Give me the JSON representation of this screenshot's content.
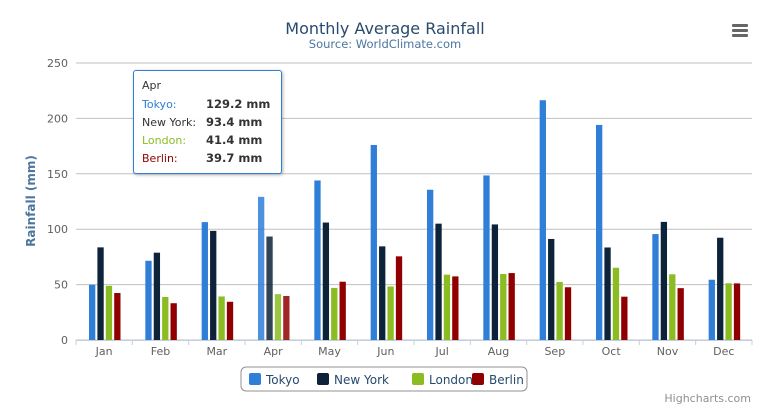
{
  "chart_data": {
    "type": "bar",
    "title": "Monthly Average Rainfall",
    "subtitle": "Source: WorldClimate.com",
    "xlabel": "",
    "ylabel": "Rainfall (mm)",
    "ylim": [
      0,
      250
    ],
    "yticks": [
      0,
      50,
      100,
      150,
      200,
      250
    ],
    "grid": true,
    "legend_position": "bottom",
    "categories": [
      "Jan",
      "Feb",
      "Mar",
      "Apr",
      "May",
      "Jun",
      "Jul",
      "Aug",
      "Sep",
      "Oct",
      "Nov",
      "Dec"
    ],
    "series": [
      {
        "name": "Tokyo",
        "color": "#2f7ed8",
        "values": [
          49.9,
          71.5,
          106.4,
          129.2,
          144.0,
          176.0,
          135.6,
          148.5,
          216.4,
          194.1,
          95.6,
          54.4
        ]
      },
      {
        "name": "New York",
        "color": "#0d233a",
        "values": [
          83.6,
          78.8,
          98.5,
          93.4,
          106.0,
          84.5,
          105.0,
          104.3,
          91.2,
          83.5,
          106.6,
          92.3
        ]
      },
      {
        "name": "London",
        "color": "#8bbc21",
        "values": [
          48.9,
          38.8,
          39.3,
          41.4,
          47.0,
          48.3,
          59.0,
          59.6,
          52.4,
          65.2,
          59.3,
          51.2
        ]
      },
      {
        "name": "Berlin",
        "color": "#910000",
        "values": [
          42.4,
          33.2,
          34.5,
          39.7,
          52.6,
          75.5,
          57.4,
          60.4,
          47.6,
          39.1,
          46.8,
          51.1
        ]
      }
    ]
  },
  "tooltip": {
    "header": "Apr",
    "rows": [
      {
        "name": "Tokyo:",
        "value": "129.2 mm",
        "color": "#2f7ed8"
      },
      {
        "name": "New York:",
        "value": "93.4 mm",
        "color": "#333333"
      },
      {
        "name": "London:",
        "value": "41.4 mm",
        "color": "#8bbc21"
      },
      {
        "name": "Berlin:",
        "value": "39.7 mm",
        "color": "#910000"
      }
    ]
  },
  "credits": "Highcharts.com",
  "menu_icon": "hamburger-menu-icon"
}
